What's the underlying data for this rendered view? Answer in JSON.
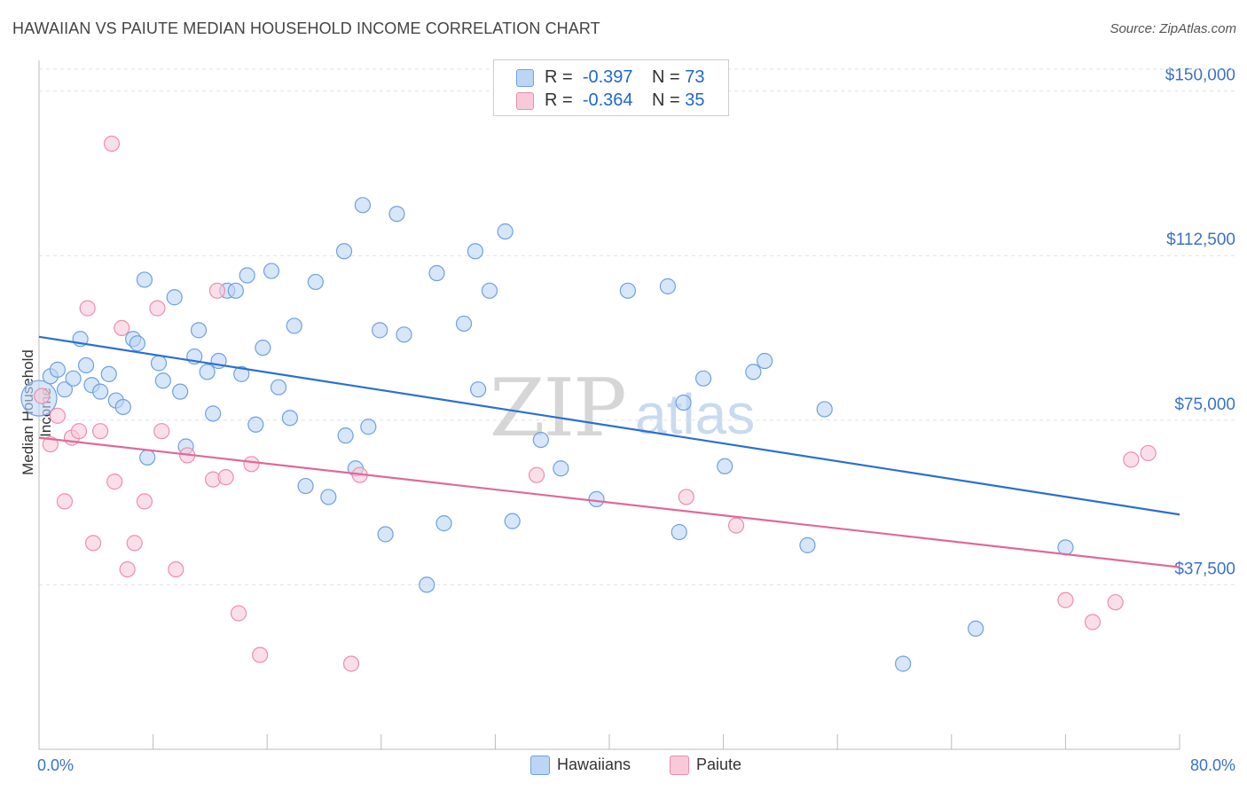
{
  "title": "HAWAIIAN VS PAIUTE MEDIAN HOUSEHOLD INCOME CORRELATION CHART",
  "source": "Source: ZipAtlas.com",
  "watermark": {
    "zip": "ZIP",
    "atlas": "atlas"
  },
  "legend_top": [
    {
      "r_label": "R =",
      "r_value": "-0.397",
      "n_label": "N =",
      "n_value": "73",
      "color": "#a8c8f0"
    },
    {
      "r_label": "R =",
      "r_value": "-0.364",
      "n_label": "N =",
      "n_value": "35",
      "color": "#f5b8ca"
    }
  ],
  "legend_bottom": [
    "Hawaiians",
    "Paiute"
  ],
  "chart_data": {
    "type": "scatter",
    "xlabel": "",
    "ylabel": "Median Household Income",
    "xlim": [
      0,
      80
    ],
    "ylim": [
      0,
      157000
    ],
    "x_tick_labels": [
      "0.0%",
      "80.0%"
    ],
    "y_ticks": [
      37500,
      75000,
      112500,
      150000
    ],
    "y_tick_labels": [
      "$37,500",
      "$75,000",
      "$112,500",
      "$150,000"
    ],
    "grid": true,
    "series": [
      {
        "name": "Hawaiians",
        "color": "#6fa1e0",
        "fill": "#bcd5f5",
        "trend": [
          [
            0,
            94000
          ],
          [
            80,
            53500
          ]
        ],
        "points": [
          [
            0,
            80000
          ],
          [
            0.8,
            85000
          ],
          [
            1.3,
            86500
          ],
          [
            1.8,
            82000
          ],
          [
            2.4,
            84500
          ],
          [
            2.9,
            93500
          ],
          [
            3.3,
            87500
          ],
          [
            3.7,
            83000
          ],
          [
            4.3,
            81500
          ],
          [
            4.9,
            85500
          ],
          [
            5.4,
            79500
          ],
          [
            5.9,
            78000
          ],
          [
            6.6,
            93500
          ],
          [
            6.9,
            92500
          ],
          [
            7.4,
            107000
          ],
          [
            7.6,
            66500
          ],
          [
            8.4,
            88000
          ],
          [
            8.7,
            84000
          ],
          [
            9.5,
            103000
          ],
          [
            9.9,
            81500
          ],
          [
            10.3,
            69000
          ],
          [
            10.9,
            89500
          ],
          [
            11.2,
            95500
          ],
          [
            11.8,
            86000
          ],
          [
            12.2,
            76500
          ],
          [
            12.6,
            88500
          ],
          [
            13.2,
            104500
          ],
          [
            13.8,
            104500
          ],
          [
            14.2,
            85500
          ],
          [
            14.6,
            108000
          ],
          [
            15.2,
            74000
          ],
          [
            15.7,
            91500
          ],
          [
            16.3,
            109000
          ],
          [
            16.8,
            82500
          ],
          [
            17.6,
            75500
          ],
          [
            17.9,
            96500
          ],
          [
            18.7,
            60000
          ],
          [
            19.4,
            106500
          ],
          [
            20.3,
            57500
          ],
          [
            21.4,
            113500
          ],
          [
            21.5,
            71500
          ],
          [
            22.2,
            64000
          ],
          [
            22.7,
            124000
          ],
          [
            23.1,
            73500
          ],
          [
            23.9,
            95500
          ],
          [
            24.3,
            49000
          ],
          [
            25.1,
            122000
          ],
          [
            25.6,
            94500
          ],
          [
            27.2,
            37500
          ],
          [
            27.9,
            108500
          ],
          [
            28.4,
            51500
          ],
          [
            29.8,
            97000
          ],
          [
            30.6,
            113500
          ],
          [
            30.8,
            82000
          ],
          [
            31.6,
            104500
          ],
          [
            32.7,
            118000
          ],
          [
            33.2,
            52000
          ],
          [
            35.2,
            70500
          ],
          [
            36.6,
            64000
          ],
          [
            39.1,
            57000
          ],
          [
            41.3,
            104500
          ],
          [
            44.1,
            105500
          ],
          [
            44.9,
            49500
          ],
          [
            45.2,
            79000
          ],
          [
            46.6,
            84500
          ],
          [
            48.1,
            64500
          ],
          [
            50.1,
            86000
          ],
          [
            50.9,
            88500
          ],
          [
            53.9,
            46500
          ],
          [
            55.1,
            77500
          ],
          [
            60.6,
            19500
          ],
          [
            65.7,
            27500
          ],
          [
            72.0,
            46000
          ]
        ]
      },
      {
        "name": "Paiute",
        "color": "#ec8fab",
        "fill": "#f8c9d8",
        "trend": [
          [
            0,
            71000
          ],
          [
            80,
            41500
          ]
        ],
        "points": [
          [
            0.2,
            80500
          ],
          [
            0.8,
            69500
          ],
          [
            1.3,
            76000
          ],
          [
            1.8,
            56500
          ],
          [
            2.3,
            71000
          ],
          [
            2.8,
            72500
          ],
          [
            3.4,
            100500
          ],
          [
            3.8,
            47000
          ],
          [
            4.3,
            72500
          ],
          [
            5.3,
            61000
          ],
          [
            5.8,
            96000
          ],
          [
            6.2,
            41000
          ],
          [
            6.7,
            47000
          ],
          [
            7.4,
            56500
          ],
          [
            8.3,
            100500
          ],
          [
            8.6,
            72500
          ],
          [
            9.6,
            41000
          ],
          [
            10.4,
            67000
          ],
          [
            12.5,
            104500
          ],
          [
            12.2,
            61500
          ],
          [
            13.1,
            62000
          ],
          [
            14.0,
            31000
          ],
          [
            14.9,
            65000
          ],
          [
            15.5,
            21500
          ],
          [
            21.9,
            19500
          ],
          [
            22.5,
            62500
          ],
          [
            34.9,
            62500
          ],
          [
            45.4,
            57500
          ],
          [
            48.9,
            51000
          ],
          [
            72.0,
            34000
          ],
          [
            73.9,
            29000
          ],
          [
            75.5,
            33500
          ],
          [
            76.6,
            66000
          ],
          [
            77.8,
            67500
          ],
          [
            5.1,
            138000
          ]
        ]
      }
    ]
  }
}
